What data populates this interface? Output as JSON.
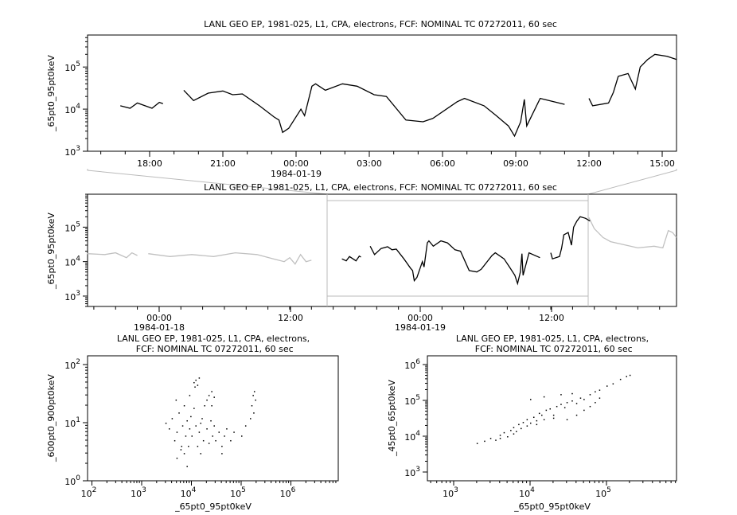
{
  "chart_data": [
    {
      "type": "line",
      "title": "LANL GEO EP, 1981-025, L1, CPA, electrons, FCF: NOMINAL TC 07272011, 60 sec",
      "ylabel": "_65pt0_95pt0keV",
      "yscale": "log",
      "ylim": [
        1000,
        570000
      ],
      "xlim": [
        "1984-01-18 15:28",
        "1984-01-19 15:35"
      ],
      "xticks": [
        "18:00",
        "21:00",
        "00:00",
        "03:00",
        "06:00",
        "09:00",
        "12:00",
        "15:00"
      ],
      "date_label": "1984-01-19",
      "series": [
        {
          "color": "#000000",
          "points": [
            [
              -7.2,
              12000
            ],
            [
              -6.8,
              10500
            ],
            [
              -6.5,
              14000
            ],
            [
              -5.9,
              10500
            ],
            [
              -5.6,
              14500
            ],
            [
              -5.45,
              13500
            ],
            null,
            [
              -4.6,
              28000
            ],
            [
              -4.2,
              16000
            ],
            [
              -3.6,
              24000
            ],
            [
              -3.0,
              27000
            ],
            [
              -2.6,
              22000
            ],
            [
              -2.2,
              23000
            ],
            [
              -1.5,
              12000
            ],
            [
              -0.9,
              6500
            ],
            [
              -0.7,
              5500
            ],
            [
              -0.55,
              2800
            ],
            [
              -0.3,
              3500
            ],
            [
              0.2,
              10000
            ],
            [
              0.35,
              7000
            ],
            [
              0.65,
              35000
            ],
            [
              0.8,
              40000
            ],
            [
              1.2,
              28000
            ],
            [
              1.9,
              40000
            ],
            [
              2.5,
              35000
            ],
            [
              3.2,
              22000
            ],
            [
              3.7,
              20000
            ],
            [
              4.5,
              5500
            ],
            [
              5.2,
              5000
            ],
            [
              5.6,
              6000
            ],
            [
              6.6,
              15000
            ],
            [
              6.9,
              18000
            ],
            [
              7.7,
              12000
            ],
            [
              8.2,
              7000
            ],
            [
              8.7,
              4000
            ],
            [
              8.95,
              2300
            ],
            [
              9.2,
              5000
            ],
            [
              9.35,
              17000
            ],
            [
              9.45,
              4000
            ],
            [
              10.0,
              18000
            ],
            [
              11.0,
              13000
            ],
            null,
            [
              12.0,
              18000
            ],
            [
              12.15,
              12000
            ],
            [
              12.8,
              14000
            ],
            [
              13.0,
              25000
            ],
            [
              13.2,
              60000
            ],
            [
              13.6,
              70000
            ],
            [
              13.9,
              30000
            ],
            [
              14.1,
              100000
            ],
            [
              14.4,
              150000
            ],
            [
              14.7,
              200000
            ],
            [
              15.2,
              180000
            ],
            [
              15.6,
              150000
            ]
          ]
        }
      ]
    },
    {
      "type": "line",
      "title": "LANL GEO EP, 1981-025, L1, CPA, electrons, FCF: NOMINAL TC 07272011, 60 sec",
      "ylabel": "_65pt0_95pt0keV",
      "yscale": "log",
      "ylim": [
        500,
        900000
      ],
      "xlim": [
        "1984-01-17 17:25",
        "1984-01-19 23:33"
      ],
      "xticks": [
        "00:00",
        "12:00",
        "00:00",
        "12:00"
      ],
      "date_labels": [
        "1984-01-18",
        "1984-01-19"
      ],
      "zoom_window": [
        "1984-01-18 15:28",
        "1984-01-19 15:35"
      ],
      "context_series": {
        "color": "#c0c0c0",
        "points": [
          [
            -30.6,
            17000
          ],
          [
            -29,
            16000
          ],
          [
            -28,
            18000
          ],
          [
            -27,
            13000
          ],
          [
            -26.5,
            18000
          ],
          [
            -26,
            15000
          ],
          null,
          [
            -25,
            17000
          ],
          [
            -23,
            14000
          ],
          [
            -21,
            16000
          ],
          [
            -19,
            14000
          ],
          [
            -17,
            18000
          ],
          [
            -15,
            16000
          ],
          [
            -13.5,
            12000
          ],
          [
            -12.5,
            10000
          ],
          [
            -12,
            13000
          ],
          [
            -11.5,
            8500
          ],
          [
            -11,
            16000
          ],
          [
            -10.5,
            10000
          ],
          [
            -10,
            11000
          ],
          null,
          [
            15.5,
            190000
          ],
          [
            16,
            90000
          ],
          [
            16.8,
            50000
          ],
          [
            17.5,
            38000
          ],
          [
            18.5,
            32000
          ],
          [
            20,
            25000
          ],
          [
            21.5,
            28000
          ],
          [
            22.3,
            25000
          ],
          [
            22.8,
            80000
          ],
          [
            23.2,
            70000
          ],
          [
            23.55,
            50000
          ]
        ]
      }
    },
    {
      "type": "scatter",
      "title": "LANL GEO EP, 1981-025, L1, CPA, electrons, FCF: NOMINAL TC 07272011, 60 sec",
      "xlabel": "_65pt0_95pt0keV",
      "ylabel": "_600pt0_900pt0keV",
      "xscale": "log",
      "yscale": "log",
      "xlim": [
        70,
        7000000
      ],
      "ylim": [
        1,
        130
      ],
      "points": [
        [
          3500,
          8
        ],
        [
          4000,
          12
        ],
        [
          4500,
          5
        ],
        [
          5000,
          7
        ],
        [
          5500,
          15
        ],
        [
          6000,
          3.5
        ],
        [
          6500,
          9
        ],
        [
          7000,
          20
        ],
        [
          7500,
          6
        ],
        [
          8000,
          11
        ],
        [
          8500,
          4
        ],
        [
          9000,
          8
        ],
        [
          9500,
          13
        ],
        [
          10000,
          6
        ],
        [
          11000,
          18
        ],
        [
          12000,
          9
        ],
        [
          13000,
          4
        ],
        [
          14000,
          7
        ],
        [
          15000,
          10
        ],
        [
          16000,
          12
        ],
        [
          17000,
          5
        ],
        [
          18000,
          20
        ],
        [
          20000,
          8
        ],
        [
          22000,
          4.5
        ],
        [
          24000,
          11
        ],
        [
          26000,
          6
        ],
        [
          28000,
          9
        ],
        [
          30000,
          5
        ],
        [
          35000,
          7
        ],
        [
          40000,
          4
        ],
        [
          45000,
          6
        ],
        [
          50000,
          8
        ],
        [
          60000,
          5
        ],
        [
          3000,
          10
        ],
        [
          4800,
          25
        ],
        [
          6200,
          4
        ],
        [
          9000,
          30
        ],
        [
          11000,
          50
        ],
        [
          12000,
          55
        ],
        [
          13000,
          45
        ],
        [
          14000,
          60
        ],
        [
          11500,
          42
        ],
        [
          20000,
          25
        ],
        [
          22000,
          30
        ],
        [
          25000,
          35
        ],
        [
          28000,
          28
        ],
        [
          25000,
          20
        ],
        [
          150000,
          12
        ],
        [
          160000,
          20
        ],
        [
          170000,
          30
        ],
        [
          180000,
          35
        ],
        [
          190000,
          25
        ],
        [
          175000,
          15
        ],
        [
          5000,
          2.5
        ],
        [
          7000,
          3
        ],
        [
          15000,
          3
        ],
        [
          40000,
          3
        ],
        [
          70000,
          7
        ],
        [
          100000,
          6
        ],
        [
          120000,
          9
        ],
        [
          8000,
          1.8
        ]
      ]
    },
    {
      "type": "scatter",
      "title": "LANL GEO EP, 1981-025, L1, CPA, electrons, FCF: NOMINAL TC 07272011, 60 sec",
      "xlabel": "_65pt0_95pt0keV",
      "ylabel": "_45pt0_65pt0keV",
      "xscale": "log",
      "yscale": "log",
      "xlim": [
        700,
        700000
      ],
      "ylim": [
        500,
        1800000
      ],
      "points": [
        [
          2000,
          6500
        ],
        [
          2500,
          7500
        ],
        [
          3000,
          9000
        ],
        [
          3500,
          8000
        ],
        [
          4000,
          11000
        ],
        [
          4500,
          13000
        ],
        [
          5000,
          10000
        ],
        [
          5500,
          15000
        ],
        [
          6000,
          18000
        ],
        [
          6500,
          14000
        ],
        [
          7000,
          22000
        ],
        [
          7500,
          17000
        ],
        [
          8000,
          25000
        ],
        [
          9000,
          30000
        ],
        [
          10000,
          24000
        ],
        [
          11000,
          35000
        ],
        [
          12000,
          28000
        ],
        [
          13000,
          45000
        ],
        [
          14000,
          40000
        ],
        [
          15000,
          30000
        ],
        [
          16000,
          55000
        ],
        [
          18000,
          60000
        ],
        [
          20000,
          40000
        ],
        [
          22000,
          70000
        ],
        [
          25000,
          80000
        ],
        [
          28000,
          65000
        ],
        [
          30000,
          90000
        ],
        [
          35000,
          100000
        ],
        [
          40000,
          85000
        ],
        [
          45000,
          120000
        ],
        [
          50000,
          110000
        ],
        [
          60000,
          150000
        ],
        [
          70000,
          180000
        ],
        [
          80000,
          200000
        ],
        [
          100000,
          260000
        ],
        [
          120000,
          300000
        ],
        [
          150000,
          400000
        ],
        [
          180000,
          480000
        ],
        [
          200000,
          520000
        ],
        [
          30000,
          30000
        ],
        [
          40000,
          40000
        ],
        [
          50000,
          55000
        ],
        [
          60000,
          70000
        ],
        [
          70000,
          90000
        ],
        [
          80000,
          120000
        ],
        [
          4000,
          9000
        ],
        [
          6000,
          12000
        ],
        [
          9000,
          20000
        ],
        [
          12000,
          22000
        ],
        [
          20000,
          33000
        ],
        [
          25000,
          150000
        ],
        [
          35000,
          160000
        ],
        [
          15000,
          130000
        ],
        [
          10000,
          110000
        ]
      ]
    }
  ]
}
